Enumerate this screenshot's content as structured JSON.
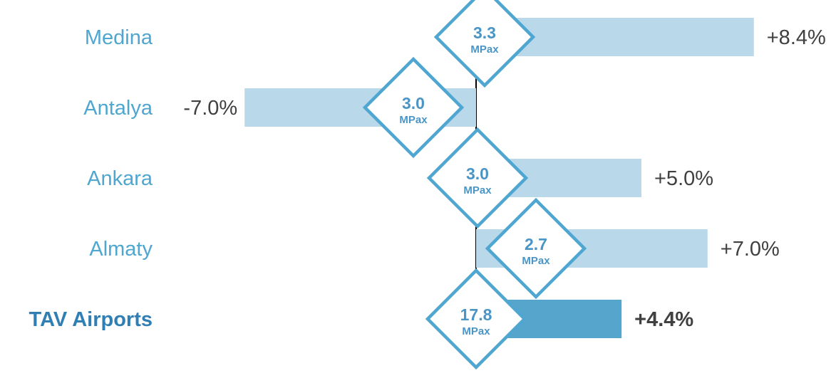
{
  "chart_data": {
    "type": "bar",
    "orientation": "horizontal",
    "categories": [
      "Medina",
      "Antalya",
      "Ankara",
      "Almaty",
      "TAV Airports"
    ],
    "values": [
      8.4,
      -7.0,
      5.0,
      7.0,
      4.4
    ],
    "value_labels": [
      "+8.4%",
      "-7.0%",
      "+5.0%",
      "+7.0%",
      "+4.4%"
    ],
    "passengers": [
      "3.3",
      "3.0",
      "3.0",
      "2.7",
      "17.8"
    ],
    "passenger_unit": "MPax",
    "highlight_category": "TAV Airports",
    "xlim": [
      -9.5,
      9.5
    ],
    "grid": false,
    "legend": "none",
    "colors": {
      "bar": "#b9d9ea",
      "bar_highlight": "#55a5cc",
      "category_label": "#4ea6d1",
      "highlight_label": "#2f7fb5",
      "diamond_stroke": "#4ea6d1",
      "diamond_text": "#4a95c5",
      "value_text": "#404040",
      "axis": "#000000"
    }
  }
}
